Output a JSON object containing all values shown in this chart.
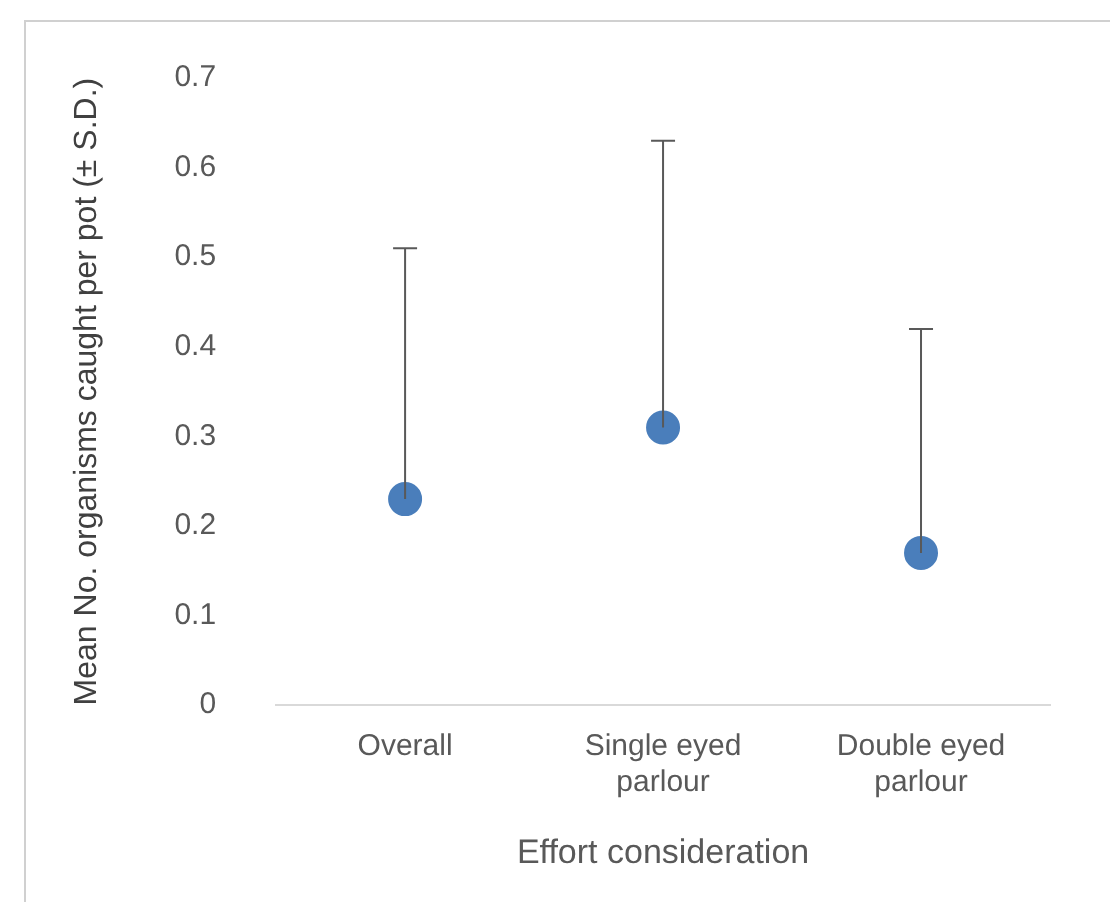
{
  "chart_data": {
    "type": "scatter",
    "xlabel": "Effort consideration",
    "ylabel": "Mean No. organisms caught per pot (± S.D.)",
    "categories": [
      "Overall",
      "Single eyed parlour",
      "Double eyed parlour"
    ],
    "values": [
      0.23,
      0.31,
      0.17
    ],
    "errors": [
      [
        0.23,
        0.51
      ],
      [
        0.31,
        0.63
      ],
      [
        0.17,
        0.42
      ]
    ],
    "color": "#4a7ebb",
    "marker": "circle",
    "grid": false,
    "ylim": [
      0,
      0.7
    ],
    "yticks": [
      0,
      0.1,
      0.2,
      0.3,
      0.4,
      0.5,
      0.6,
      0.7
    ]
  }
}
